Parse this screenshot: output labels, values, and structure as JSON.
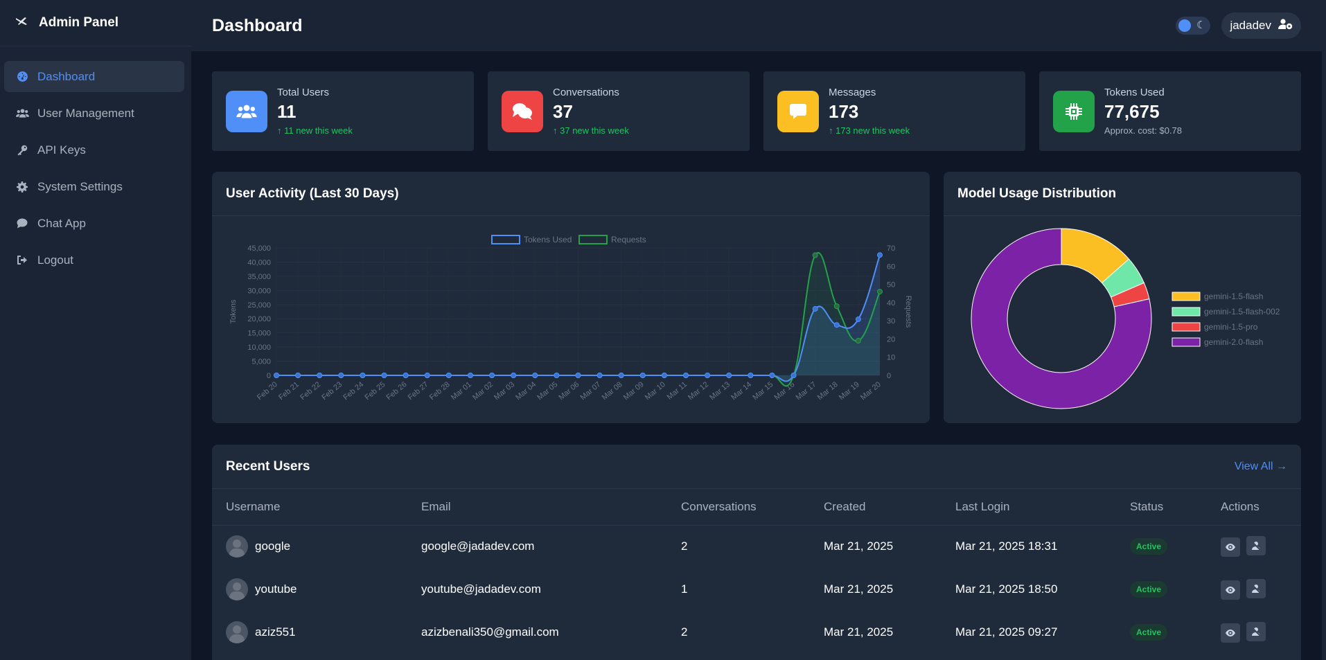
{
  "brand": {
    "title": "Admin Panel",
    "logo_icon": "plane-icon"
  },
  "sidebar": {
    "items": [
      {
        "label": "Dashboard",
        "icon": "gauge-icon",
        "active": true
      },
      {
        "label": "User Management",
        "icon": "users-icon"
      },
      {
        "label": "API Keys",
        "icon": "key-icon"
      },
      {
        "label": "System Settings",
        "icon": "gear-icon"
      },
      {
        "label": "Chat App",
        "icon": "chat-icon"
      },
      {
        "label": "Logout",
        "icon": "logout-icon"
      }
    ]
  },
  "header": {
    "title": "Dashboard",
    "username": "jadadev"
  },
  "colors": {
    "accent": "#4f8ff7",
    "users": "#4f8ff7",
    "conversations": "#ef4444",
    "messages": "#fbbf24",
    "tokens": "#22a349",
    "success": "#22c55e"
  },
  "stats": [
    {
      "label": "Total Users",
      "value": "11",
      "trend": "11 new this week"
    },
    {
      "label": "Conversations",
      "value": "37",
      "trend": "37 new this week"
    },
    {
      "label": "Messages",
      "value": "173",
      "trend": "173 new this week"
    },
    {
      "label": "Tokens Used",
      "value": "77,675",
      "note": "Approx. cost: $0.78"
    }
  ],
  "activity_panel": {
    "title": "User Activity (Last 30 Days)"
  },
  "model_panel": {
    "title": "Model Usage Distribution"
  },
  "chart_data": [
    {
      "type": "line",
      "title": "User Activity (Last 30 Days)",
      "x": [
        "Feb 20",
        "Feb 21",
        "Feb 22",
        "Feb 23",
        "Feb 24",
        "Feb 25",
        "Feb 26",
        "Feb 27",
        "Feb 28",
        "Mar 01",
        "Mar 02",
        "Mar 03",
        "Mar 04",
        "Mar 05",
        "Mar 06",
        "Mar 07",
        "Mar 08",
        "Mar 09",
        "Mar 10",
        "Mar 11",
        "Mar 12",
        "Mar 13",
        "Mar 14",
        "Mar 15",
        "Mar 16",
        "Mar 17",
        "Mar 18",
        "Mar 19",
        "Mar 20"
      ],
      "series": [
        {
          "name": "Tokens Used",
          "axis": "left",
          "color": "#4f8ff7",
          "values": [
            0,
            0,
            0,
            0,
            0,
            0,
            0,
            0,
            0,
            0,
            0,
            0,
            0,
            0,
            0,
            0,
            0,
            0,
            0,
            0,
            0,
            0,
            0,
            0,
            0,
            23500,
            17800,
            19800,
            42500
          ]
        },
        {
          "name": "Requests",
          "axis": "right",
          "color": "#22a349",
          "values": [
            0,
            0,
            0,
            0,
            0,
            0,
            0,
            0,
            0,
            0,
            0,
            0,
            0,
            0,
            0,
            0,
            0,
            0,
            0,
            0,
            0,
            0,
            0,
            0,
            0,
            66,
            38,
            19,
            46
          ]
        }
      ],
      "ylabel": "Tokens",
      "y2label": "Requests",
      "ylim": [
        0,
        45000
      ],
      "y2lim": [
        0,
        70
      ],
      "yticks": [
        "45,000",
        "40,000",
        "35,000",
        "30,000",
        "25,000",
        "20,000",
        "15,000",
        "10,000",
        "5,000",
        "0"
      ],
      "y2ticks": [
        "70",
        "60",
        "50",
        "40",
        "30",
        "20",
        "10",
        "0"
      ],
      "legend": "top"
    },
    {
      "type": "pie",
      "title": "Model Usage Distribution",
      "donut": true,
      "categories": [
        "gemini-1.5-flash",
        "gemini-1.5-flash-002",
        "gemini-1.5-pro",
        "gemini-2.0-flash"
      ],
      "values": [
        13.5,
        5,
        3,
        78.5
      ],
      "colors": [
        "#fbbf24",
        "#6ee7a8",
        "#ef4444",
        "#7b22a6"
      ],
      "legend": "right"
    }
  ],
  "users_panel": {
    "title": "Recent Users",
    "view_all": "View All"
  },
  "table": {
    "columns": [
      "Username",
      "Email",
      "Conversations",
      "Created",
      "Last Login",
      "Status",
      "Actions"
    ],
    "rows": [
      {
        "username": "google",
        "email": "google@jadadev.com",
        "conversations": "2",
        "created": "Mar 21, 2025",
        "last_login": "Mar 21, 2025 18:31",
        "status": "Active"
      },
      {
        "username": "youtube",
        "email": "youtube@jadadev.com",
        "conversations": "1",
        "created": "Mar 21, 2025",
        "last_login": "Mar 21, 2025 18:50",
        "status": "Active"
      },
      {
        "username": "aziz551",
        "email": "azizbenali350@gmail.com",
        "conversations": "2",
        "created": "Mar 21, 2025",
        "last_login": "Mar 21, 2025 09:27",
        "status": "Active"
      }
    ]
  }
}
